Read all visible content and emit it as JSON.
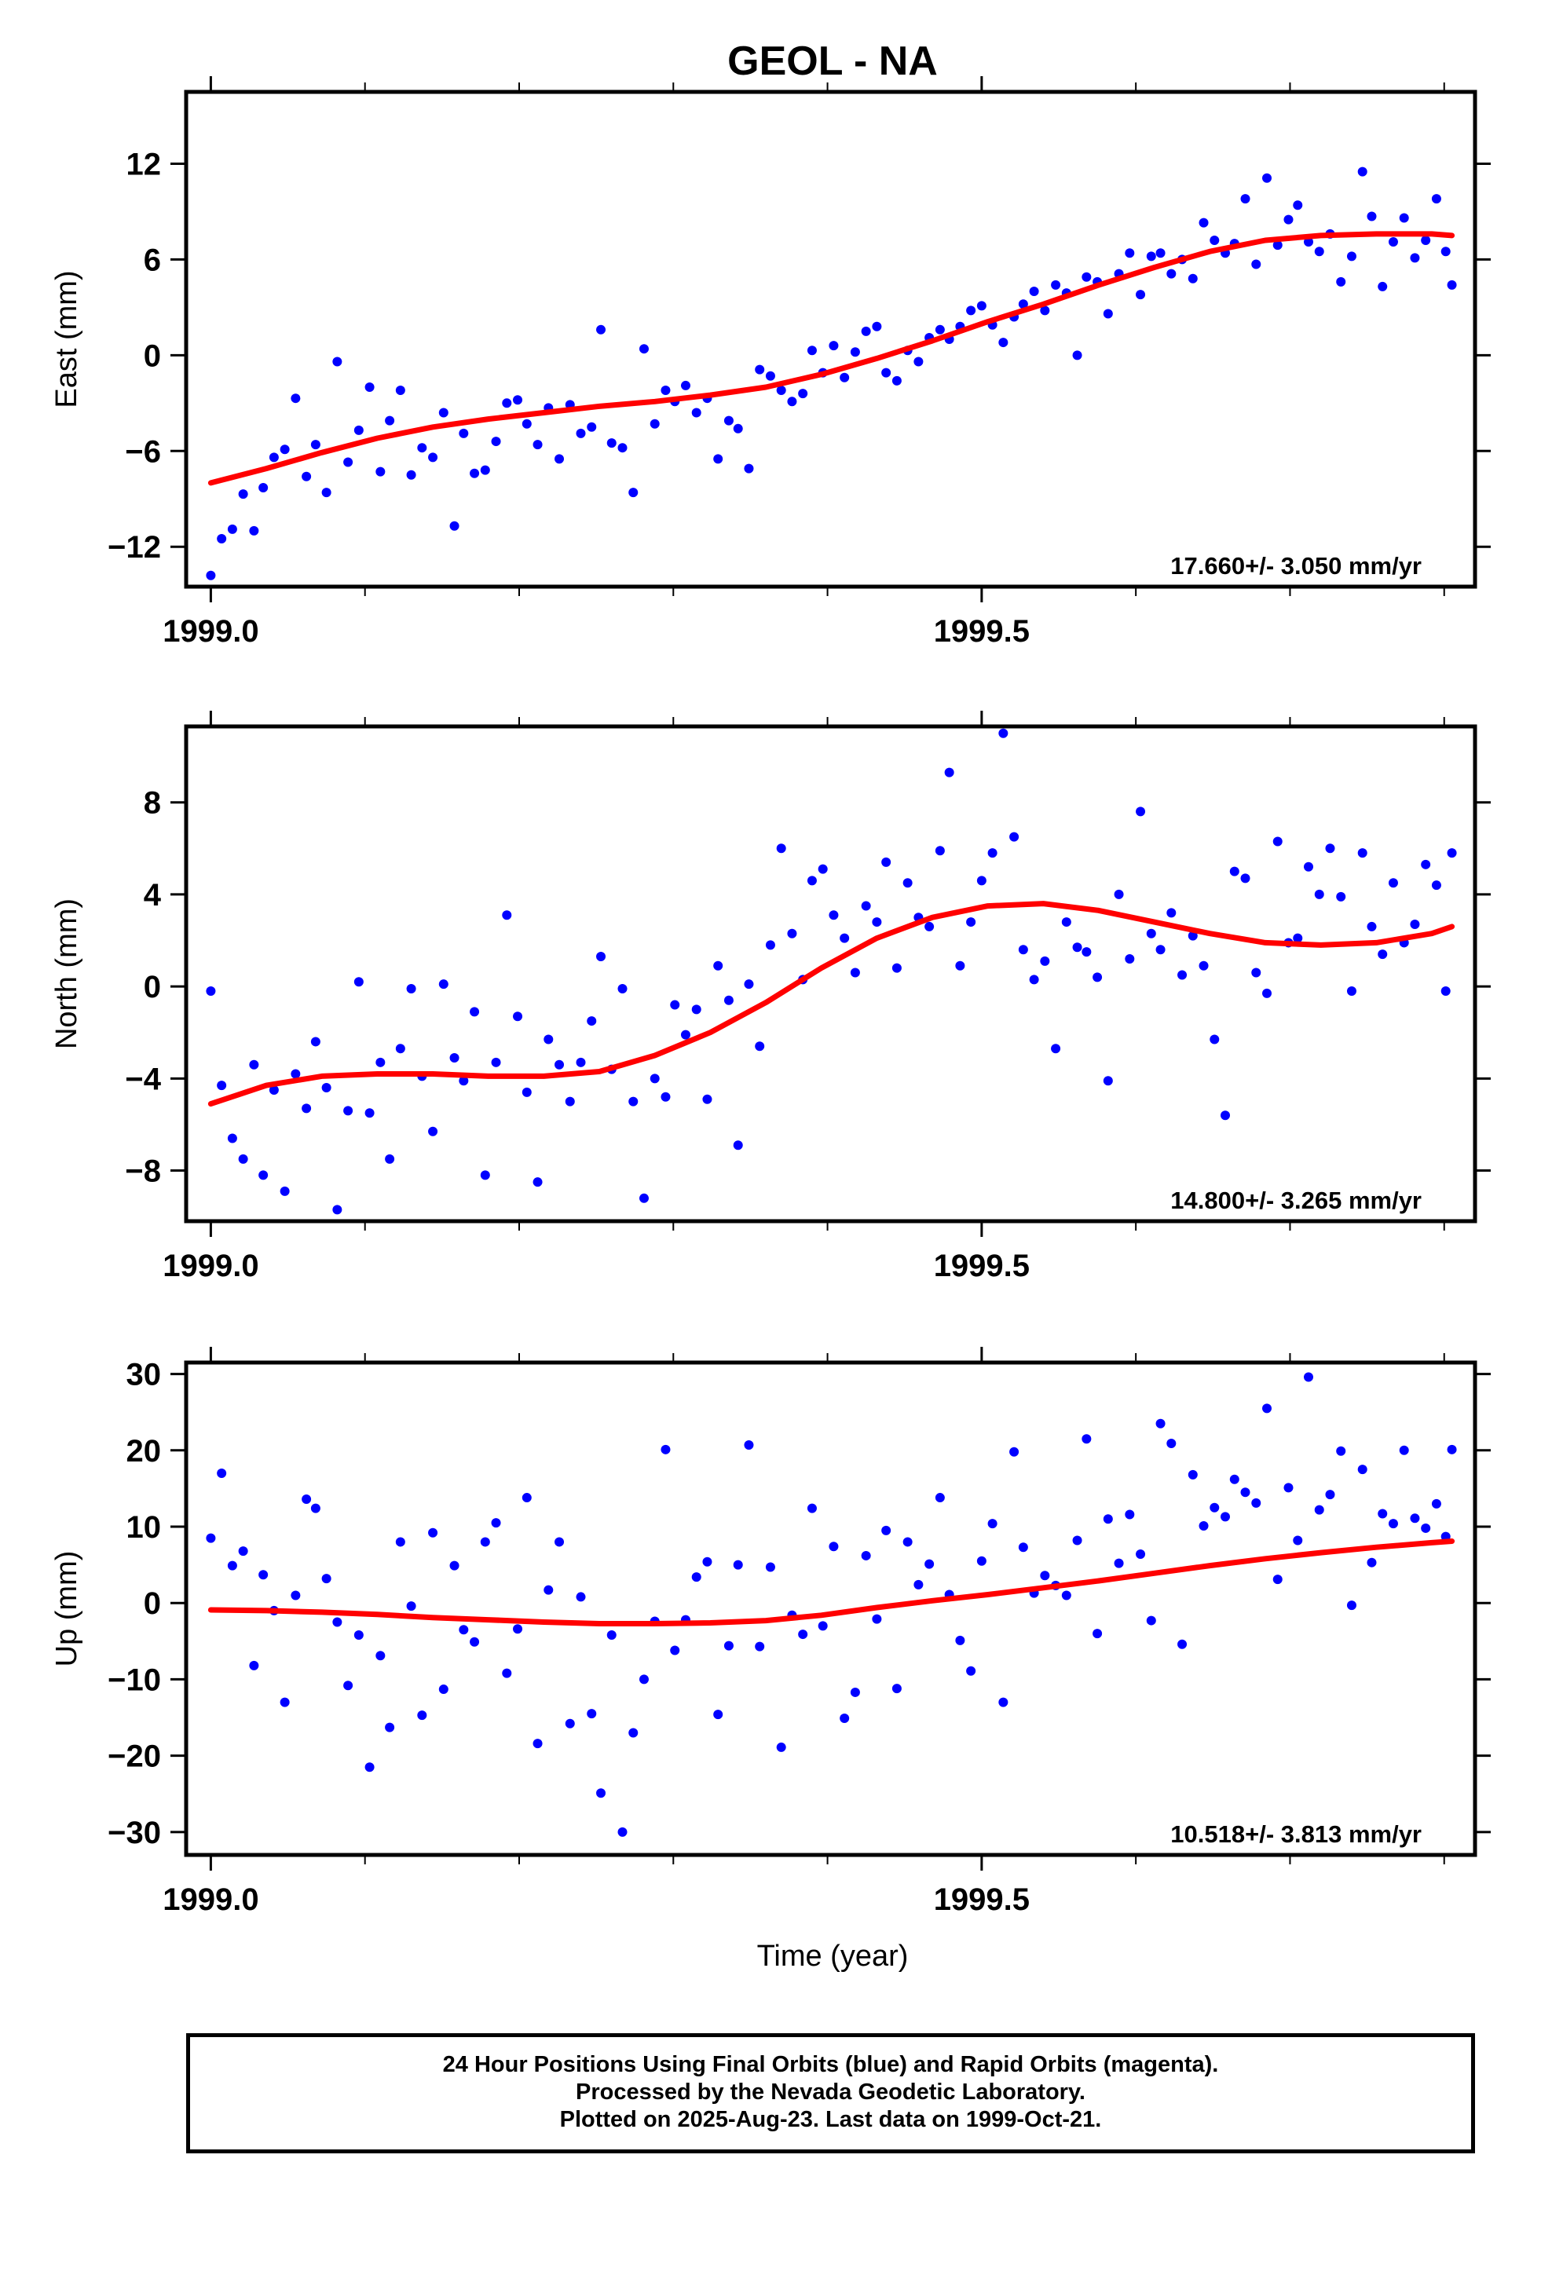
{
  "title": "GEOL - NA",
  "xlabel": "Time (year)",
  "caption": {
    "line1": "24 Hour Positions Using Final Orbits (blue) and Rapid Orbits (magenta).",
    "line2": "Processed by the Nevada Geodetic Laboratory.",
    "line3": "Plotted on 2025-Aug-23. Last data on 1999-Oct-21."
  },
  "colors": {
    "points": "#0000ff",
    "trend": "#ff0000",
    "frame": "#000000"
  },
  "chart_data": [
    {
      "type": "scatter",
      "ylabel": "East (mm)",
      "rate_label": "17.660+/- 3.050 mm/yr",
      "xlim": [
        1998.984,
        1999.82
      ],
      "ylim": [
        -14.5,
        16.5
      ],
      "xticks": [
        1999.0,
        1999.5
      ],
      "xtick_labels": [
        "1999.0",
        "1999.5"
      ],
      "yticks": [
        -12,
        -6,
        0,
        6,
        12
      ],
      "ytick_labels": [
        "−12",
        "−6",
        "0",
        "6",
        "12"
      ],
      "series": [
        {
          "kind": "points",
          "x": [
            1999.0,
            1999.007,
            1999.014,
            1999.021,
            1999.028,
            1999.034,
            1999.041,
            1999.048,
            1999.055,
            1999.062,
            1999.068,
            1999.075,
            1999.082,
            1999.089,
            1999.096,
            1999.103,
            1999.11,
            1999.116,
            1999.123,
            1999.13,
            1999.137,
            1999.144,
            1999.151,
            1999.158,
            1999.164,
            1999.171,
            1999.178,
            1999.185,
            1999.192,
            1999.199,
            1999.205,
            1999.212,
            1999.219,
            1999.226,
            1999.233,
            1999.24,
            1999.247,
            1999.253,
            1999.26,
            1999.267,
            1999.274,
            1999.281,
            1999.288,
            1999.295,
            1999.301,
            1999.308,
            1999.315,
            1999.322,
            1999.329,
            1999.336,
            1999.342,
            1999.349,
            1999.356,
            1999.363,
            1999.37,
            1999.377,
            1999.384,
            1999.39,
            1999.397,
            1999.404,
            1999.411,
            1999.418,
            1999.425,
            1999.432,
            1999.438,
            1999.445,
            1999.452,
            1999.459,
            1999.466,
            1999.473,
            1999.479,
            1999.486,
            1999.493,
            1999.5,
            1999.507,
            1999.514,
            1999.521,
            1999.527,
            1999.534,
            1999.541,
            1999.548,
            1999.555,
            1999.562,
            1999.568,
            1999.575,
            1999.582,
            1999.589,
            1999.596,
            1999.603,
            1999.61,
            1999.616,
            1999.623,
            1999.63,
            1999.637,
            1999.644,
            1999.651,
            1999.658,
            1999.664,
            1999.671,
            1999.678,
            1999.685,
            1999.692,
            1999.699,
            1999.705,
            1999.712,
            1999.719,
            1999.726,
            1999.733,
            1999.74,
            1999.747,
            1999.753,
            1999.76,
            1999.767,
            1999.774,
            1999.781,
            1999.788,
            1999.795,
            1999.801,
            1999.805
          ],
          "y": [
            -13.8,
            -11.5,
            -10.9,
            -8.7,
            -11.0,
            -8.3,
            -6.4,
            -5.9,
            -2.7,
            -7.6,
            -5.6,
            -8.6,
            -0.4,
            -6.7,
            -4.7,
            -2.0,
            -7.3,
            -4.1,
            -2.2,
            -7.5,
            -5.8,
            -6.4,
            -3.6,
            -10.7,
            -4.9,
            -7.4,
            -7.2,
            -5.4,
            -3.0,
            -2.8,
            -4.3,
            -5.6,
            -3.3,
            -6.5,
            -3.1,
            -4.9,
            -4.5,
            1.6,
            -5.5,
            -5.8,
            -8.6,
            0.4,
            -4.3,
            -2.2,
            -2.9,
            -1.9,
            -3.6,
            -2.7,
            -6.5,
            -4.1,
            -4.6,
            -7.1,
            -0.9,
            -1.3,
            -2.2,
            -2.9,
            -2.4,
            0.3,
            -1.1,
            0.6,
            -1.4,
            0.2,
            1.5,
            1.8,
            -1.1,
            -1.6,
            0.3,
            -0.4,
            1.1,
            1.6,
            1.0,
            1.8,
            2.8,
            3.1,
            1.9,
            0.8,
            2.4,
            3.2,
            4.0,
            2.8,
            4.4,
            3.9,
            0.0,
            4.9,
            4.6,
            2.6,
            5.1,
            6.4,
            3.8,
            6.2,
            6.4,
            5.1,
            6.0,
            4.8,
            8.3,
            7.2,
            6.4,
            7.0,
            9.8,
            5.7,
            11.1,
            6.9,
            8.5,
            9.4,
            7.1,
            6.5,
            7.6,
            4.6,
            6.2,
            11.5,
            8.7,
            4.3,
            7.1,
            8.6,
            6.1,
            7.2,
            9.8,
            6.5,
            4.4
          ]
        },
        {
          "kind": "trend",
          "x": [
            1999.0,
            1999.036,
            1999.072,
            1999.108,
            1999.144,
            1999.18,
            1999.216,
            1999.252,
            1999.288,
            1999.324,
            1999.36,
            1999.396,
            1999.432,
            1999.468,
            1999.504,
            1999.54,
            1999.576,
            1999.612,
            1999.648,
            1999.684,
            1999.72,
            1999.756,
            1999.792,
            1999.805
          ],
          "y": [
            -8.0,
            -7.1,
            -6.1,
            -5.2,
            -4.5,
            -4.0,
            -3.6,
            -3.2,
            -2.9,
            -2.5,
            -2.0,
            -1.2,
            -0.2,
            0.9,
            2.1,
            3.2,
            4.4,
            5.5,
            6.5,
            7.2,
            7.5,
            7.6,
            7.6,
            7.5
          ]
        }
      ]
    },
    {
      "type": "scatter",
      "ylabel": "North (mm)",
      "rate_label": "14.800+/- 3.265 mm/yr",
      "xlim": [
        1998.984,
        1999.82
      ],
      "ylim": [
        -10.2,
        11.3
      ],
      "xticks": [
        1999.0,
        1999.5
      ],
      "xtick_labels": [
        "1999.0",
        "1999.5"
      ],
      "yticks": [
        -8,
        -4,
        0,
        4,
        8
      ],
      "ytick_labels": [
        "−8",
        "−4",
        "0",
        "4",
        "8"
      ],
      "series": [
        {
          "kind": "points",
          "x": [
            1999.0,
            1999.007,
            1999.014,
            1999.021,
            1999.028,
            1999.034,
            1999.041,
            1999.048,
            1999.055,
            1999.062,
            1999.068,
            1999.075,
            1999.082,
            1999.089,
            1999.096,
            1999.103,
            1999.11,
            1999.116,
            1999.123,
            1999.13,
            1999.137,
            1999.144,
            1999.151,
            1999.158,
            1999.164,
            1999.171,
            1999.178,
            1999.185,
            1999.192,
            1999.199,
            1999.205,
            1999.212,
            1999.219,
            1999.226,
            1999.233,
            1999.24,
            1999.247,
            1999.253,
            1999.26,
            1999.267,
            1999.274,
            1999.281,
            1999.288,
            1999.295,
            1999.301,
            1999.308,
            1999.315,
            1999.322,
            1999.329,
            1999.336,
            1999.342,
            1999.349,
            1999.356,
            1999.363,
            1999.37,
            1999.377,
            1999.384,
            1999.39,
            1999.397,
            1999.404,
            1999.411,
            1999.418,
            1999.425,
            1999.432,
            1999.438,
            1999.445,
            1999.452,
            1999.459,
            1999.466,
            1999.473,
            1999.479,
            1999.486,
            1999.493,
            1999.5,
            1999.507,
            1999.514,
            1999.521,
            1999.527,
            1999.534,
            1999.541,
            1999.548,
            1999.555,
            1999.562,
            1999.568,
            1999.575,
            1999.582,
            1999.589,
            1999.596,
            1999.603,
            1999.61,
            1999.616,
            1999.623,
            1999.63,
            1999.637,
            1999.644,
            1999.651,
            1999.658,
            1999.664,
            1999.671,
            1999.678,
            1999.685,
            1999.692,
            1999.699,
            1999.705,
            1999.712,
            1999.719,
            1999.726,
            1999.733,
            1999.74,
            1999.747,
            1999.753,
            1999.76,
            1999.767,
            1999.774,
            1999.781,
            1999.788,
            1999.795,
            1999.801,
            1999.805
          ],
          "y": [
            -0.2,
            -4.3,
            -6.6,
            -7.5,
            -3.4,
            -8.2,
            -4.5,
            -8.9,
            -3.8,
            -5.3,
            -2.4,
            -4.4,
            -9.7,
            -5.4,
            0.2,
            -5.5,
            -3.3,
            -7.5,
            -2.7,
            -0.1,
            -3.9,
            -6.3,
            0.1,
            -3.1,
            -4.1,
            -1.1,
            -8.2,
            -3.3,
            3.1,
            -1.3,
            -4.6,
            -8.5,
            -2.3,
            -3.4,
            -5.0,
            -3.3,
            -1.5,
            1.3,
            -3.6,
            -0.1,
            -5.0,
            -9.2,
            -4.0,
            -4.8,
            -0.8,
            -2.1,
            -1.0,
            -4.9,
            0.9,
            -0.6,
            -6.9,
            0.1,
            -2.6,
            1.8,
            6.0,
            2.3,
            0.3,
            4.6,
            5.1,
            3.1,
            2.1,
            0.6,
            3.5,
            2.8,
            5.4,
            0.8,
            4.5,
            3.0,
            2.6,
            5.9,
            9.3,
            0.9,
            2.8,
            4.6,
            5.8,
            11.0,
            6.5,
            1.6,
            0.3,
            1.1,
            -2.7,
            2.8,
            1.7,
            1.5,
            0.4,
            -4.1,
            4.0,
            1.2,
            7.6,
            2.3,
            1.6,
            3.2,
            0.5,
            2.2,
            0.9,
            -2.3,
            -5.6,
            5.0,
            4.7,
            0.6,
            -0.3,
            6.3,
            1.9,
            2.1,
            5.2,
            4.0,
            6.0,
            3.9,
            -0.2,
            5.8,
            2.6,
            1.4,
            4.5,
            1.9,
            2.7,
            5.3,
            4.4,
            -0.2,
            5.8
          ]
        },
        {
          "kind": "trend",
          "x": [
            1999.0,
            1999.036,
            1999.072,
            1999.108,
            1999.144,
            1999.18,
            1999.216,
            1999.252,
            1999.288,
            1999.324,
            1999.36,
            1999.396,
            1999.432,
            1999.468,
            1999.504,
            1999.54,
            1999.576,
            1999.612,
            1999.648,
            1999.684,
            1999.72,
            1999.756,
            1999.792,
            1999.805
          ],
          "y": [
            -5.1,
            -4.3,
            -3.9,
            -3.8,
            -3.8,
            -3.9,
            -3.9,
            -3.7,
            -3.0,
            -2.0,
            -0.7,
            0.8,
            2.1,
            3.0,
            3.5,
            3.6,
            3.3,
            2.8,
            2.3,
            1.9,
            1.8,
            1.9,
            2.3,
            2.6
          ]
        }
      ]
    },
    {
      "type": "scatter",
      "ylabel": "Up (mm)",
      "rate_label": "10.518+/- 3.813 mm/yr",
      "xlim": [
        1998.984,
        1999.82
      ],
      "ylim": [
        -33,
        31.5
      ],
      "xticks": [
        1999.0,
        1999.5
      ],
      "xtick_labels": [
        "1999.0",
        "1999.5"
      ],
      "yticks": [
        -30,
        -20,
        -10,
        0,
        10,
        20,
        30
      ],
      "ytick_labels": [
        "−30",
        "−20",
        "−10",
        "0",
        "10",
        "20",
        "30"
      ],
      "series": [
        {
          "kind": "points",
          "x": [
            1999.0,
            1999.007,
            1999.014,
            1999.021,
            1999.028,
            1999.034,
            1999.041,
            1999.048,
            1999.055,
            1999.062,
            1999.068,
            1999.075,
            1999.082,
            1999.089,
            1999.096,
            1999.103,
            1999.11,
            1999.116,
            1999.123,
            1999.13,
            1999.137,
            1999.144,
            1999.151,
            1999.158,
            1999.164,
            1999.171,
            1999.178,
            1999.185,
            1999.192,
            1999.199,
            1999.205,
            1999.212,
            1999.219,
            1999.226,
            1999.233,
            1999.24,
            1999.247,
            1999.253,
            1999.26,
            1999.267,
            1999.274,
            1999.281,
            1999.288,
            1999.295,
            1999.301,
            1999.308,
            1999.315,
            1999.322,
            1999.329,
            1999.336,
            1999.342,
            1999.349,
            1999.356,
            1999.363,
            1999.37,
            1999.377,
            1999.384,
            1999.39,
            1999.397,
            1999.404,
            1999.411,
            1999.418,
            1999.425,
            1999.432,
            1999.438,
            1999.445,
            1999.452,
            1999.459,
            1999.466,
            1999.473,
            1999.479,
            1999.486,
            1999.493,
            1999.5,
            1999.507,
            1999.514,
            1999.521,
            1999.527,
            1999.534,
            1999.541,
            1999.548,
            1999.555,
            1999.562,
            1999.568,
            1999.575,
            1999.582,
            1999.589,
            1999.596,
            1999.603,
            1999.61,
            1999.616,
            1999.623,
            1999.63,
            1999.637,
            1999.644,
            1999.651,
            1999.658,
            1999.664,
            1999.671,
            1999.678,
            1999.685,
            1999.692,
            1999.699,
            1999.705,
            1999.712,
            1999.719,
            1999.726,
            1999.733,
            1999.74,
            1999.747,
            1999.753,
            1999.76,
            1999.767,
            1999.774,
            1999.781,
            1999.788,
            1999.795,
            1999.801,
            1999.805
          ],
          "y": [
            8.5,
            17.0,
            4.9,
            6.8,
            -8.2,
            3.7,
            -1.0,
            -13.0,
            1.0,
            13.6,
            12.4,
            3.2,
            -2.5,
            -10.8,
            -4.2,
            -21.5,
            -6.9,
            -16.3,
            8.0,
            -0.4,
            -14.7,
            9.2,
            -11.3,
            4.9,
            -3.5,
            -5.1,
            8.0,
            10.5,
            -9.2,
            -3.4,
            13.8,
            -18.4,
            1.7,
            8.0,
            -15.8,
            0.8,
            -14.5,
            -24.9,
            -4.2,
            -30.0,
            -17.0,
            -10.0,
            -2.4,
            20.1,
            -6.2,
            -2.2,
            3.4,
            5.4,
            -14.6,
            -5.6,
            5.0,
            20.7,
            -5.7,
            4.7,
            -18.9,
            -1.6,
            -4.1,
            12.4,
            -3.0,
            7.4,
            -15.1,
            -11.7,
            6.2,
            -2.1,
            9.5,
            -11.2,
            8.0,
            2.4,
            5.1,
            13.8,
            1.1,
            -4.9,
            -8.9,
            5.5,
            10.4,
            -13.0,
            19.8,
            7.3,
            1.3,
            3.6,
            2.3,
            1.0,
            8.2,
            21.5,
            -4.0,
            11.0,
            5.2,
            11.6,
            6.4,
            -2.3,
            23.5,
            20.9,
            -5.4,
            16.8,
            10.1,
            12.5,
            11.3,
            16.2,
            14.5,
            13.1,
            25.5,
            3.1,
            15.1,
            8.2,
            29.6,
            12.2,
            14.2,
            19.9,
            -0.3,
            17.5,
            5.3,
            11.7,
            10.4,
            20.0,
            11.1,
            9.8,
            13.0,
            8.7,
            20.1
          ]
        },
        {
          "kind": "trend",
          "x": [
            1999.0,
            1999.036,
            1999.072,
            1999.108,
            1999.144,
            1999.18,
            1999.216,
            1999.252,
            1999.288,
            1999.324,
            1999.36,
            1999.396,
            1999.432,
            1999.468,
            1999.504,
            1999.54,
            1999.576,
            1999.612,
            1999.648,
            1999.684,
            1999.72,
            1999.756,
            1999.792,
            1999.805
          ],
          "y": [
            -0.9,
            -1.0,
            -1.2,
            -1.5,
            -1.9,
            -2.2,
            -2.5,
            -2.7,
            -2.7,
            -2.6,
            -2.3,
            -1.6,
            -0.6,
            0.3,
            1.1,
            2.0,
            2.9,
            3.9,
            4.9,
            5.8,
            6.6,
            7.3,
            7.9,
            8.1
          ]
        }
      ]
    }
  ]
}
